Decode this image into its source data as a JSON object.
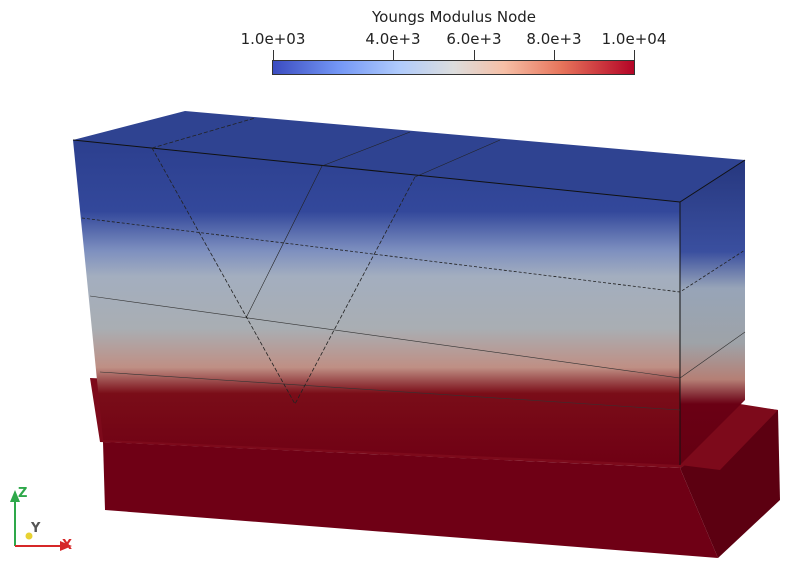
{
  "colorbar": {
    "title": "Youngs Modulus Node",
    "ticks": [
      "1.0e+03",
      "4.0e+3",
      "6.0e+3",
      "8.0e+3",
      "1.0e+04"
    ]
  },
  "axes": {
    "x_label": "X",
    "y_label": "Y",
    "z_label": "Z"
  },
  "colors": {
    "low": "#3b4cc0",
    "mid": "#dcdddd",
    "high": "#b40426",
    "base": "#6e0016"
  }
}
